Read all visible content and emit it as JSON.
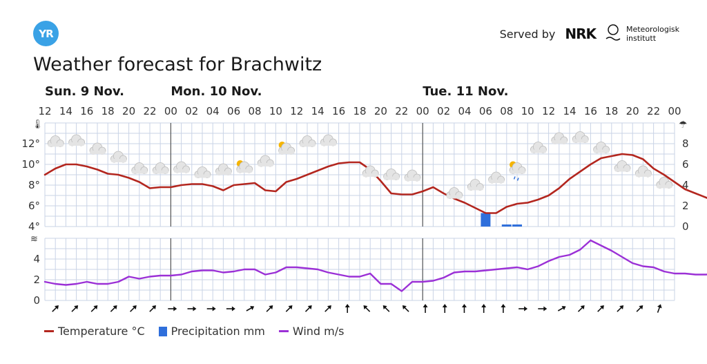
{
  "header": {
    "logo_text": "YR",
    "served_by": "Served by",
    "nrk": "NRK",
    "met_line1": "Meteorologisk",
    "met_line2": "institutt",
    "title": "Weather forecast for Brachwitz"
  },
  "legend": {
    "temperature": "Temperature °C",
    "precipitation": "Precipitation mm",
    "wind": "Wind m/s"
  },
  "colors": {
    "temperature": "#b3261e",
    "precipitation": "#2f6fdb",
    "wind": "#9b30d6",
    "grid": "#c9d3e6",
    "day_line": "#555555"
  },
  "icons": {
    "temperature_axis": "thermometer-icon",
    "precipitation_axis": "umbrella-icon",
    "wind_axis": "wind-icon"
  },
  "chart_data": {
    "type": "line",
    "days": [
      {
        "label": "Sun. 9 Nov.",
        "start_hour_index": 0
      },
      {
        "label": "Mon. 10 Nov.",
        "start_hour_index": 12
      },
      {
        "label": "Tue. 11 Nov.",
        "start_hour_index": 36
      }
    ],
    "hour_labels": [
      "12",
      "14",
      "16",
      "18",
      "20",
      "22",
      "00",
      "02",
      "04",
      "06",
      "08",
      "10",
      "12",
      "14",
      "16",
      "18",
      "20",
      "22",
      "00",
      "02",
      "04",
      "06",
      "08",
      "10",
      "12",
      "14",
      "16",
      "18",
      "20",
      "22",
      "00"
    ],
    "temperature": {
      "unit": "°C",
      "ticks": [
        "4°",
        "6°",
        "8°",
        "10°",
        "12°"
      ],
      "ylim": [
        4,
        14
      ],
      "values": [
        9.0,
        9.6,
        10.0,
        10.0,
        9.8,
        9.5,
        9.1,
        9.0,
        8.7,
        8.3,
        7.7,
        7.8,
        7.8,
        8.0,
        8.1,
        8.1,
        7.9,
        7.5,
        8.0,
        8.1,
        8.2,
        7.5,
        7.4,
        8.3,
        8.6,
        9.0,
        9.4,
        9.8,
        10.1,
        10.2,
        10.2,
        9.5,
        8.4,
        7.2,
        7.1,
        7.1,
        7.4,
        7.8,
        7.2,
        6.7,
        6.3,
        5.8,
        5.3,
        5.3,
        5.9,
        6.2,
        6.3,
        6.6,
        7.0,
        7.7,
        8.6,
        9.3,
        10.0,
        10.6,
        10.8,
        11.0,
        10.9,
        10.5,
        9.6,
        9.0,
        8.3,
        7.6,
        7.2,
        6.8,
        6.4,
        6.0,
        5.7,
        5.1
      ]
    },
    "precipitation": {
      "unit": "mm",
      "ticks": [
        "0",
        "2",
        "4",
        "6",
        "8"
      ],
      "ylim": [
        0,
        10
      ],
      "bars": [
        {
          "hour_index": 42,
          "value": 1.3
        },
        {
          "hour_index": 44,
          "value": 0.2
        },
        {
          "hour_index": 45,
          "value": 0.2
        }
      ]
    },
    "wind": {
      "unit": "m/s",
      "ticks": [
        "0",
        "2",
        "4"
      ],
      "ylim": [
        0,
        6
      ],
      "values": [
        1.8,
        1.6,
        1.5,
        1.6,
        1.8,
        1.6,
        1.6,
        1.8,
        2.3,
        2.1,
        2.3,
        2.4,
        2.4,
        2.5,
        2.8,
        2.9,
        2.9,
        2.7,
        2.8,
        3.0,
        3.0,
        2.5,
        2.7,
        3.2,
        3.2,
        3.1,
        3.0,
        2.7,
        2.5,
        2.3,
        2.3,
        2.6,
        1.6,
        1.6,
        0.9,
        1.8,
        1.8,
        1.9,
        2.2,
        2.7,
        2.8,
        2.8,
        2.9,
        3.0,
        3.1,
        3.2,
        3.0,
        3.3,
        3.8,
        4.2,
        4.4,
        4.9,
        5.8,
        5.3,
        4.8,
        4.2,
        3.6,
        3.3,
        3.2,
        2.8,
        2.6,
        2.6,
        2.5,
        2.5,
        2.6,
        2.6,
        2.5,
        2.3
      ]
    },
    "wind_directions": [
      225,
      225,
      225,
      225,
      225,
      225,
      270,
      270,
      270,
      270,
      240,
      225,
      225,
      225,
      225,
      180,
      135,
      135,
      135,
      180,
      180,
      180,
      180,
      180,
      270,
      270,
      240,
      225,
      225,
      225,
      225,
      200
    ],
    "weather_symbols": [
      {
        "hour_index": 1,
        "temp": 12.1,
        "symbol": "cloudy-icon"
      },
      {
        "hour_index": 3,
        "temp": 12.2,
        "symbol": "cloudy-icon"
      },
      {
        "hour_index": 5,
        "temp": 11.4,
        "symbol": "cloudy-icon"
      },
      {
        "hour_index": 7,
        "temp": 10.6,
        "symbol": "partly-cloudy-night-icon"
      },
      {
        "hour_index": 9,
        "temp": 9.5,
        "symbol": "cloudy-icon"
      },
      {
        "hour_index": 11,
        "temp": 9.5,
        "symbol": "cloudy-icon"
      },
      {
        "hour_index": 13,
        "temp": 9.6,
        "symbol": "cloudy-icon"
      },
      {
        "hour_index": 15,
        "temp": 9.1,
        "symbol": "cloudy-icon"
      },
      {
        "hour_index": 17,
        "temp": 9.4,
        "symbol": "cloudy-icon"
      },
      {
        "hour_index": 19,
        "temp": 9.6,
        "symbol": "partly-cloudy-day-icon"
      },
      {
        "hour_index": 21,
        "temp": 10.2,
        "symbol": "cloudy-icon"
      },
      {
        "hour_index": 23,
        "temp": 11.4,
        "symbol": "partly-cloudy-day-icon"
      },
      {
        "hour_index": 25,
        "temp": 12.1,
        "symbol": "cloudy-icon"
      },
      {
        "hour_index": 27,
        "temp": 12.2,
        "symbol": "cloudy-icon"
      },
      {
        "hour_index": 29,
        "temp": 10.8,
        "symbol": "clear-night-icon"
      },
      {
        "hour_index": 31,
        "temp": 9.2,
        "symbol": "cloudy-icon"
      },
      {
        "hour_index": 33,
        "temp": 8.9,
        "symbol": "cloudy-icon"
      },
      {
        "hour_index": 35,
        "temp": 8.8,
        "symbol": "partly-cloudy-night-icon"
      },
      {
        "hour_index": 37,
        "temp": 7.9,
        "symbol": "clear-night-icon"
      },
      {
        "hour_index": 39,
        "temp": 7.1,
        "symbol": "cloudy-icon"
      },
      {
        "hour_index": 41,
        "temp": 7.9,
        "symbol": "cloudy-icon"
      },
      {
        "hour_index": 43,
        "temp": 8.6,
        "symbol": "cloudy-icon"
      },
      {
        "hour_index": 45,
        "temp": 9.5,
        "symbol": "rain-day-icon"
      },
      {
        "hour_index": 47,
        "temp": 11.5,
        "symbol": "cloudy-icon"
      },
      {
        "hour_index": 49,
        "temp": 12.4,
        "symbol": "cloudy-icon"
      },
      {
        "hour_index": 51,
        "temp": 12.5,
        "symbol": "cloudy-icon"
      },
      {
        "hour_index": 53,
        "temp": 11.5,
        "symbol": "cloudy-icon"
      },
      {
        "hour_index": 55,
        "temp": 9.7,
        "symbol": "partly-cloudy-night-icon"
      },
      {
        "hour_index": 57,
        "temp": 9.2,
        "symbol": "partly-cloudy-night-icon"
      },
      {
        "hour_index": 59,
        "temp": 8.1,
        "symbol": "partly-cloudy-night-icon"
      }
    ]
  }
}
